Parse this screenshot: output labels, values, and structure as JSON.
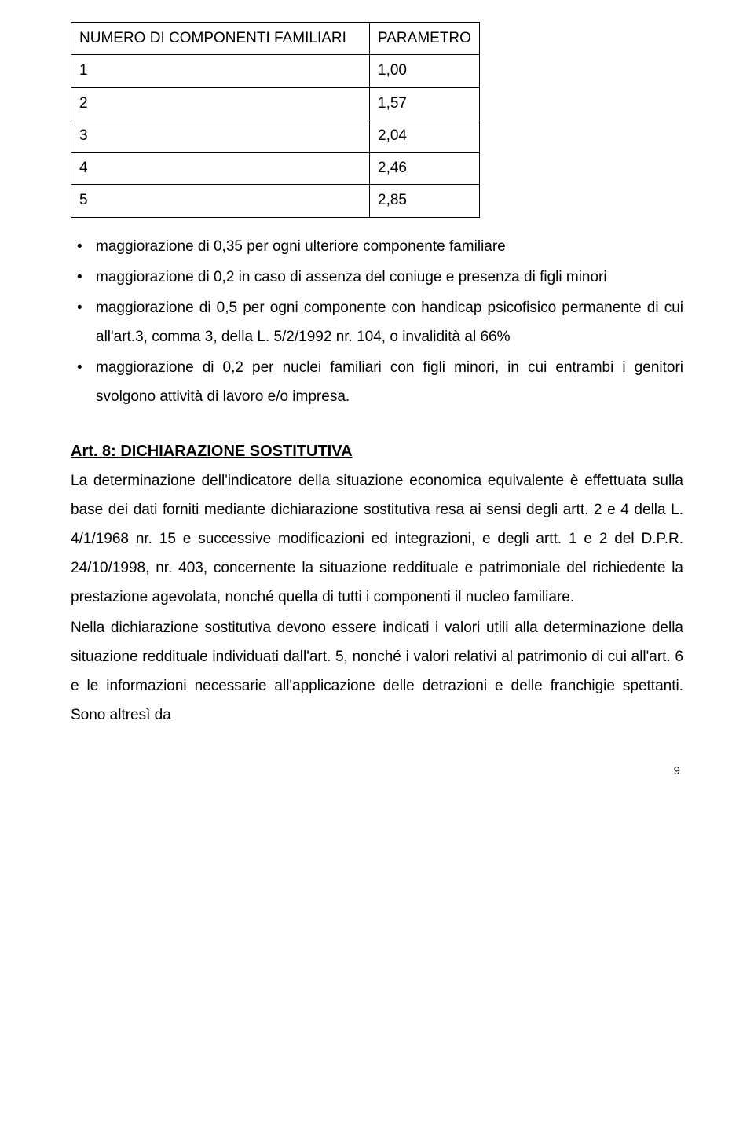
{
  "table": {
    "headers": [
      "NUMERO DI COMPONENTI FAMILIARI",
      "PARAMETRO"
    ],
    "rows": [
      [
        "1",
        "1,00"
      ],
      [
        "2",
        "1,57"
      ],
      [
        "3",
        "2,04"
      ],
      [
        "4",
        "2,46"
      ],
      [
        "5",
        "2,85"
      ]
    ]
  },
  "bullets": [
    "maggiorazione di 0,35 per ogni ulteriore componente familiare",
    "maggiorazione di 0,2 in caso di assenza del coniuge e presenza di figli minori",
    "maggiorazione di 0,5 per ogni componente con handicap psicofisico permanente di cui all'art.3, comma 3, della L. 5/2/1992 nr. 104, o invalidità al 66%",
    "maggiorazione di 0,2 per nuclei familiari con figli minori, in cui entrambi i genitori svolgono attività di lavoro e/o impresa."
  ],
  "article": {
    "heading": "Art. 8: DICHIARAZIONE SOSTITUTIVA",
    "para1": "La determinazione dell'indicatore della situazione economica equivalente è effettuata sulla base dei dati forniti mediante dichiarazione sostitutiva resa ai sensi degli artt. 2 e 4 della L. 4/1/1968 nr. 15 e successive modificazioni ed integrazioni, e degli artt. 1 e 2 del D.P.R. 24/10/1998, nr. 403, concernente la situazione reddituale e patrimoniale del richiedente la prestazione agevolata, nonché quella di tutti i componenti il nucleo familiare.",
    "para2": "Nella dichiarazione sostitutiva devono essere indicati i valori utili alla determinazione della situazione reddituale individuati dall'art. 5, nonché i valori relativi al patrimonio di cui all'art. 6 e le informazioni necessarie all'applicazione delle detrazioni e delle franchigie spettanti. Sono altresì da"
  },
  "page_number": "9"
}
